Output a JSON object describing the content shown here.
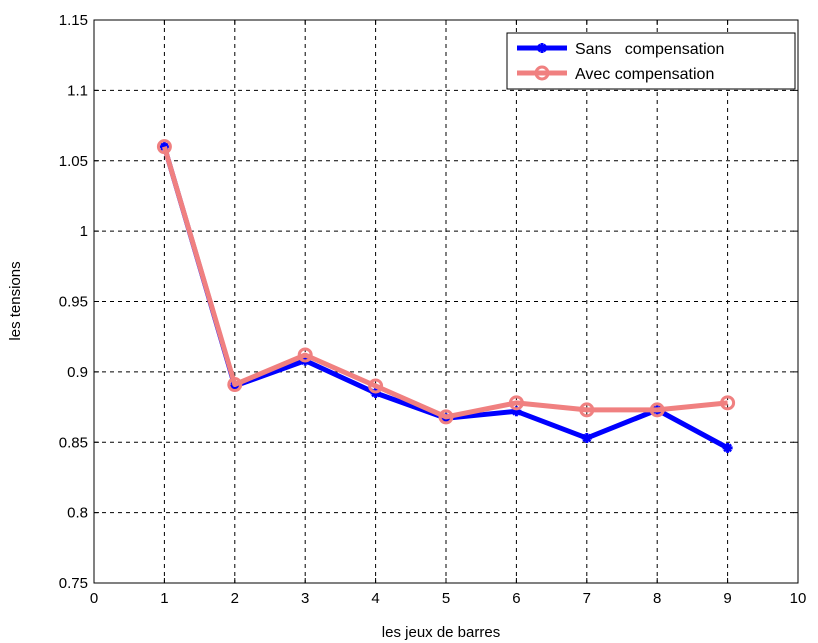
{
  "chart_data": {
    "type": "line",
    "title": "",
    "xlabel": "les jeux de barres",
    "ylabel": "les tensions",
    "xlim": [
      0,
      10
    ],
    "ylim": [
      0.75,
      1.15
    ],
    "x_ticks": [
      0,
      1,
      2,
      3,
      4,
      5,
      6,
      7,
      8,
      9,
      10
    ],
    "x_tick_labels": [
      "0",
      "1",
      "2",
      "3",
      "4",
      "5",
      "6",
      "7",
      "8",
      "9",
      "10"
    ],
    "y_ticks": [
      0.75,
      0.8,
      0.85,
      0.9,
      0.95,
      1.0,
      1.05,
      1.1,
      1.15
    ],
    "y_tick_labels": [
      "0.75",
      "0.8",
      "0.85",
      "0.9",
      "0.95",
      "1",
      "1.05",
      "1.1",
      "1.15"
    ],
    "grid": true,
    "legend_position": "top-right",
    "x": [
      1,
      2,
      3,
      4,
      5,
      6,
      7,
      8,
      9
    ],
    "series": [
      {
        "name": "Sans   compensation",
        "color": "#0000ff",
        "marker": "star",
        "values": [
          1.06,
          0.89,
          0.908,
          0.885,
          0.867,
          0.872,
          0.853,
          0.873,
          0.846
        ]
      },
      {
        "name": "Avec compensation",
        "color": "#f08080",
        "marker": "circle",
        "values": [
          1.06,
          0.891,
          0.912,
          0.89,
          0.868,
          0.878,
          0.873,
          0.873,
          0.878
        ]
      }
    ]
  }
}
